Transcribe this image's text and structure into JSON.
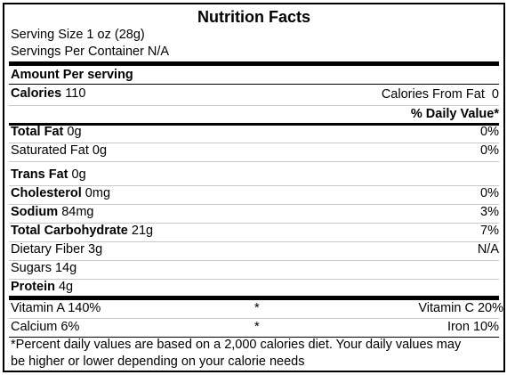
{
  "title": "Nutrition Facts",
  "serving_size": "Serving Size 1 oz (28g)",
  "servings_per_container": "Servings Per Container N/A",
  "amount_per_serving": "Amount Per serving",
  "calories": {
    "label": "Calories",
    "value": "110",
    "from_fat_label": "Calories From Fat",
    "from_fat_value": "0"
  },
  "daily_value_header": "% Daily Value*",
  "nutrients": [
    {
      "label": "Total Fat",
      "amount": "0g",
      "dv": "0%"
    },
    {
      "label": "Saturated Fat",
      "amount": "0g",
      "dv": "0%"
    },
    {
      "label": "Trans Fat",
      "amount": "0g",
      "dv": ""
    },
    {
      "label": "Cholesterol",
      "amount": "0mg",
      "dv": "0%"
    },
    {
      "label": "Sodium",
      "amount": "84mg",
      "dv": "3%"
    },
    {
      "label": "Total Carbohydrate",
      "amount": "21g",
      "dv": "7%"
    },
    {
      "label": "Dietary Fiber",
      "amount": "3g",
      "dv": "N/A"
    },
    {
      "label": "Sugars",
      "amount": "14g",
      "dv": ""
    },
    {
      "label": "Protein",
      "amount": "4g",
      "dv": ""
    }
  ],
  "vitamins": [
    {
      "left": "Vitamin A 140%",
      "sep": "*",
      "right": "Vitamin C 20%"
    },
    {
      "left": "Calcium 6%",
      "sep": "*",
      "right": "Iron 10%"
    }
  ],
  "footnote": {
    "line1": "*Percent daily values are based on a 2,000 calories diet. Your daily values may",
    "line2": "be higher or lower depending on your calorie needs"
  }
}
